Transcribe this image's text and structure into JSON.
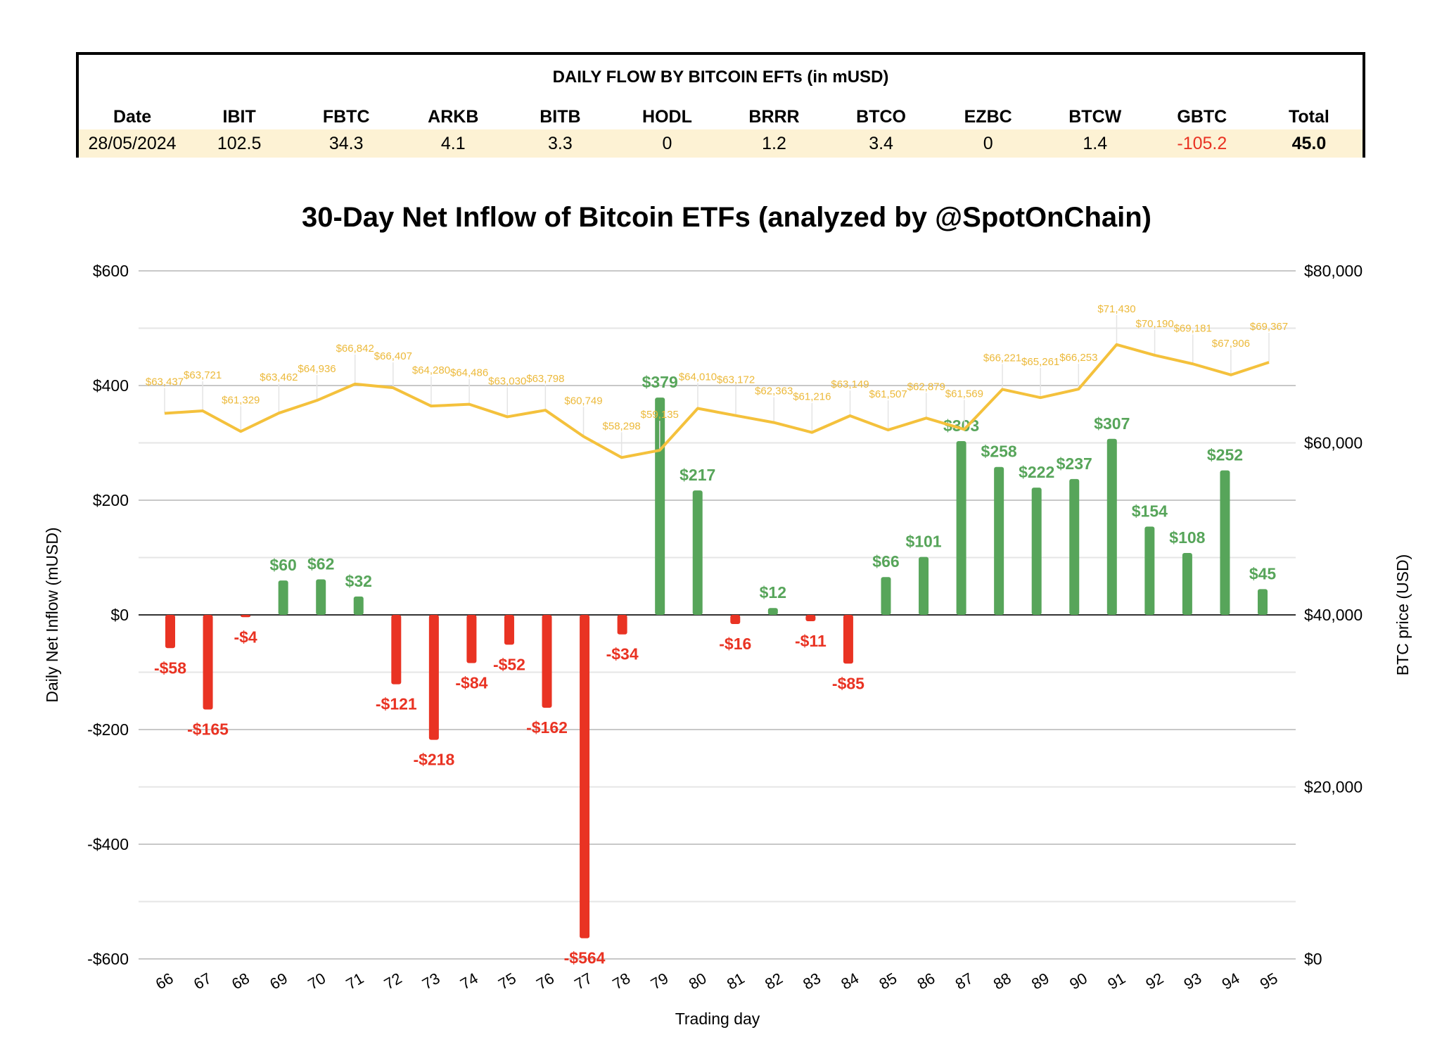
{
  "table": {
    "title": "DAILY FLOW BY BITCOIN EFTs (in mUSD)",
    "headers": [
      "Date",
      "IBIT",
      "FBTC",
      "ARKB",
      "BITB",
      "HODL",
      "BRRR",
      "BTCO",
      "EZBC",
      "BTCW",
      "GBTC",
      "Total"
    ],
    "values": [
      "28/05/2024",
      "102.5",
      "34.3",
      "4.1",
      "3.3",
      "0",
      "1.2",
      "3.4",
      "0",
      "1.4",
      "-105.2",
      "45.0"
    ],
    "negative_color": "#e93323"
  },
  "chart_data": {
    "type": "bar+line",
    "title": "30-Day Net Inflow of Bitcoin ETFs (analyzed by @SpotOnChain)",
    "xlabel": "Trading day",
    "ylabel": "Daily Net Inflow (mUSD)",
    "y2label": "BTC price (USD)",
    "ylim": [
      -600,
      600
    ],
    "y2lim": [
      0,
      80000
    ],
    "yticks": [
      "$600",
      "$400",
      "$200",
      "$0",
      "-$200",
      "-$400",
      "-$600"
    ],
    "y2ticks": [
      "$80,000",
      "$60,000",
      "$40,000",
      "$20,000",
      "$0"
    ],
    "grid": true,
    "categories": [
      "66",
      "67",
      "68",
      "69",
      "70",
      "71",
      "72",
      "73",
      "74",
      "75",
      "76",
      "77",
      "78",
      "79",
      "80",
      "81",
      "82",
      "83",
      "84",
      "85",
      "86",
      "87",
      "88",
      "89",
      "90",
      "91",
      "92",
      "93",
      "94",
      "95"
    ],
    "net_inflow": [
      -58,
      -165,
      -4,
      60,
      62,
      32,
      -121,
      -218,
      -84,
      -52,
      -162,
      -564,
      -34,
      379,
      217,
      -16,
      12,
      -11,
      -85,
      66,
      101,
      303,
      258,
      222,
      237,
      307,
      154,
      108,
      252,
      45
    ],
    "btc_price": [
      63437,
      63721,
      61329,
      63462,
      64936,
      66842,
      66407,
      64280,
      64486,
      63030,
      63798,
      60749,
      58298,
      59135,
      64010,
      63172,
      62363,
      61216,
      63149,
      61507,
      62879,
      61569,
      66221,
      65261,
      66253,
      71430,
      70190,
      69181,
      67906,
      69367
    ],
    "colors": {
      "positive": "#57a55a",
      "negative": "#e93323",
      "price_line": "#f4c13c",
      "price_label": "#ecb93a"
    }
  }
}
